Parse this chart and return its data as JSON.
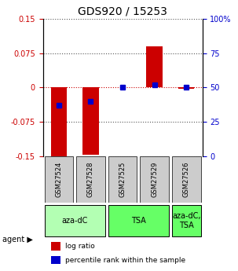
{
  "title": "GDS920 / 15253",
  "samples": [
    "GSM27524",
    "GSM27528",
    "GSM27525",
    "GSM27529",
    "GSM27526"
  ],
  "log_ratio": [
    -0.155,
    -0.148,
    0.0,
    0.09,
    -0.002
  ],
  "percentile_rank": [
    0.37,
    0.4,
    0.5,
    0.52,
    0.5
  ],
  "ylim": [
    -0.15,
    0.15
  ],
  "yticks_left": [
    -0.15,
    -0.075,
    0,
    0.075,
    0.15
  ],
  "yticks_right": [
    0,
    25,
    50,
    75,
    100
  ],
  "ytick_labels_left": [
    "-0.15",
    "-0.075",
    "0",
    "0.075",
    "0.15"
  ],
  "ytick_labels_right": [
    "0",
    "25",
    "50",
    "75",
    "100%"
  ],
  "agent_groups": [
    {
      "label": "aza-dC",
      "start": 0,
      "end": 2,
      "color": "#b3ffb3"
    },
    {
      "label": "TSA",
      "start": 2,
      "end": 4,
      "color": "#66ff66"
    },
    {
      "label": "aza-dC,\nTSA",
      "start": 4,
      "end": 5,
      "color": "#66ff66"
    }
  ],
  "agent_label": "agent",
  "bar_color": "#cc0000",
  "blue_color": "#0000cc",
  "bar_width": 0.5,
  "legend_log_ratio": "log ratio",
  "legend_percentile": "percentile rank within the sample",
  "title_color": "#000000",
  "left_axis_color": "#cc0000",
  "right_axis_color": "#0000cc",
  "grid_color": "#555555",
  "zero_line_color": "#cc0000",
  "sample_bg_color": "#cccccc"
}
